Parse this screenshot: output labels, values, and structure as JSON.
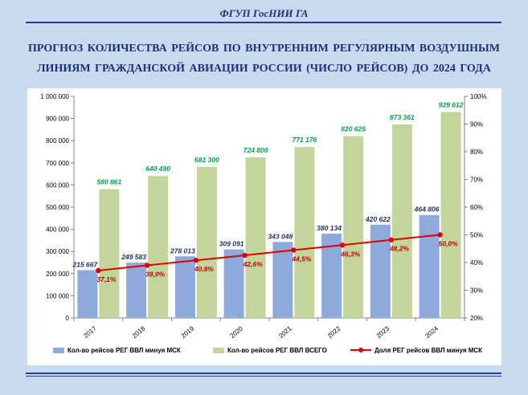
{
  "header": {
    "org_name": "ФГУП ГосНИИ ГА"
  },
  "chart_data": {
    "type": "bar",
    "title_line1": "ПРОГНОЗ КОЛИЧЕСТВА  РЕЙСОВ ПО ВНУТРЕННИМ  РЕГУЛЯРНЫМ  ВОЗДУШНЫМ",
    "title_line2": "ЛИНИЯМ  ГРАЖДАНСКОЙ АВИАЦИИ РОССИИ (ЧИСЛО РЕЙСОВ) ДО 2024 ГОДА",
    "categories": [
      "2017",
      "2018",
      "2019",
      "2020",
      "2021",
      "2022",
      "2023",
      "2024"
    ],
    "series": [
      {
        "name": "Кол-во рейсов РЕГ ВВЛ минуя МСК",
        "type": "bar",
        "axis": "left",
        "color": "#8eaadb",
        "values": [
          215667,
          249583,
          278013,
          309091,
          343048,
          380134,
          420622,
          464806
        ],
        "labels": [
          "215 667",
          "249 583",
          "278 013",
          "309 091",
          "343 048",
          "380 134",
          "420 622",
          "464 806"
        ]
      },
      {
        "name": "Кол-во рейсов РЕГ ВВЛ ВСЕГО",
        "type": "bar",
        "axis": "left",
        "color": "#c2d69b",
        "values": [
          580861,
          640490,
          681300,
          724800,
          771176,
          820625,
          873361,
          929612
        ],
        "labels": [
          "580 861",
          "640 490",
          "681 300",
          "724 800",
          "771 176",
          "820 625",
          "873 361",
          "929 612"
        ]
      },
      {
        "name": "Доля  РЕГ рейсов ВВЛ минуя  МСК",
        "type": "line",
        "axis": "right",
        "color": "#e00000",
        "values": [
          37.1,
          39.0,
          40.8,
          42.6,
          44.5,
          46.3,
          48.2,
          50.0
        ],
        "labels": [
          "37,1%",
          "39,0%",
          "40,8%",
          "42,6%",
          "44,5%",
          "46,3%",
          "48,2%",
          "50,0%"
        ]
      }
    ],
    "y_left": {
      "min": 0,
      "max": 1000000,
      "ticks": [
        "0",
        "100 000",
        "200 000",
        "300 000",
        "400 000",
        "500 000",
        "600 000",
        "700 000",
        "800 000",
        "900 000",
        "1 000 000"
      ]
    },
    "y_right": {
      "min": 20,
      "max": 100,
      "ticks": [
        "20%",
        "30%",
        "40%",
        "50%",
        "60%",
        "70%",
        "80%",
        "90%",
        "100%"
      ]
    },
    "grid": false,
    "legend_position": "bottom"
  }
}
